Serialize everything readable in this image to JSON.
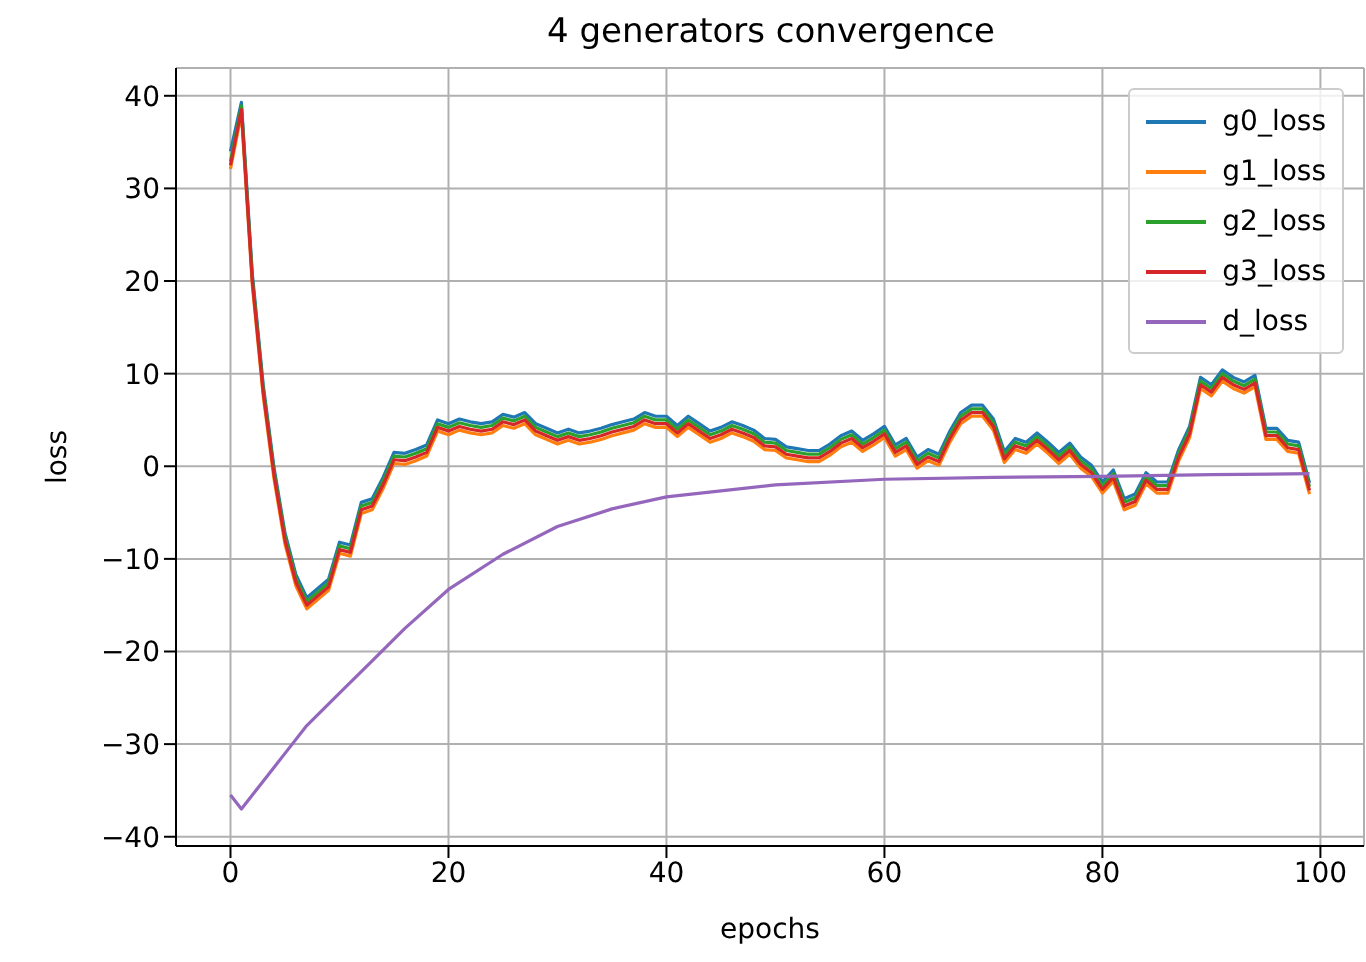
{
  "chart_data": {
    "type": "line",
    "title": "4 generators convergence",
    "xlabel": "epochs",
    "ylabel": "loss",
    "x": [
      0,
      1,
      2,
      3,
      4,
      5,
      6,
      7,
      8,
      9,
      10,
      11,
      12,
      13,
      14,
      15,
      16,
      17,
      18,
      19,
      20,
      21,
      22,
      23,
      24,
      25,
      26,
      27,
      28,
      29,
      30,
      31,
      32,
      33,
      34,
      35,
      36,
      37,
      38,
      39,
      40,
      41,
      42,
      43,
      44,
      45,
      46,
      47,
      48,
      49,
      50,
      51,
      52,
      53,
      54,
      55,
      56,
      57,
      58,
      59,
      60,
      61,
      62,
      63,
      64,
      65,
      66,
      67,
      68,
      69,
      70,
      71,
      72,
      73,
      74,
      75,
      76,
      77,
      78,
      79,
      80,
      81,
      82,
      83,
      84,
      85,
      86,
      87,
      88,
      89,
      90,
      91,
      92,
      93,
      94,
      95,
      96,
      97,
      98,
      99
    ],
    "series": [
      {
        "name": "g0_loss",
        "color": "#1f77b4",
        "values": [
          34,
          39.3,
          20.8,
          8.8,
          -0.2,
          -7.2,
          -11.7,
          -14.2,
          -13.2,
          -12.2,
          -8.2,
          -8.5,
          -3.9,
          -3.5,
          -1.2,
          1.5,
          1.4,
          1.8,
          2.3,
          5,
          4.6,
          5.1,
          4.8,
          4.6,
          4.8,
          5.6,
          5.3,
          5.8,
          4.6,
          4.1,
          3.6,
          4,
          3.6,
          3.8,
          4.1,
          4.5,
          4.8,
          5.1,
          5.8,
          5.4,
          5.4,
          4.4,
          5.4,
          4.6,
          3.8,
          4.2,
          4.8,
          4.4,
          3.9,
          3,
          2.9,
          2.1,
          1.9,
          1.7,
          1.7,
          2.4,
          3.3,
          3.8,
          2.8,
          3.5,
          4.3,
          2.3,
          3,
          1,
          1.8,
          1.3,
          3.8,
          5.8,
          6.6,
          6.6,
          5.1,
          1.6,
          3,
          2.6,
          3.6,
          2.6,
          1.5,
          2.5,
          1,
          0.1,
          -1.7,
          -0.4,
          -3.5,
          -3,
          -0.7,
          -1.7,
          -1.7,
          1.8,
          4.3,
          9.6,
          8.8,
          10.4,
          9.6,
          9.1,
          9.8,
          4.1,
          4.1,
          2.8,
          2.6,
          -1.8
        ]
      },
      {
        "name": "g1_loss",
        "color": "#ff7f0e",
        "values": [
          32.1,
          38.1,
          19.6,
          7.6,
          -1.4,
          -8.4,
          -12.9,
          -15.4,
          -14.4,
          -13.4,
          -9.4,
          -9.7,
          -5.1,
          -4.7,
          -2.4,
          0.3,
          0.2,
          0.6,
          1.1,
          3.8,
          3.4,
          3.9,
          3.6,
          3.4,
          3.6,
          4.4,
          4.1,
          4.6,
          3.4,
          2.9,
          2.4,
          2.8,
          2.4,
          2.6,
          2.9,
          3.3,
          3.6,
          3.9,
          4.6,
          4.2,
          4.2,
          3.2,
          4.2,
          3.4,
          2.6,
          3,
          3.6,
          3.2,
          2.7,
          1.8,
          1.7,
          0.9,
          0.7,
          0.5,
          0.5,
          1.2,
          2.1,
          2.6,
          1.6,
          2.3,
          3.1,
          1.1,
          1.8,
          -0.2,
          0.6,
          0.1,
          2.6,
          4.6,
          5.4,
          5.4,
          3.9,
          0.4,
          1.8,
          1.4,
          2.4,
          1.4,
          0.3,
          1.3,
          -0.2,
          -1.1,
          -2.9,
          -1.6,
          -4.7,
          -4.2,
          -1.9,
          -2.9,
          -2.9,
          0.6,
          3.1,
          8.4,
          7.6,
          9.2,
          8.4,
          7.9,
          8.6,
          2.9,
          2.9,
          1.6,
          1.4,
          -3
        ]
      },
      {
        "name": "g2_loss",
        "color": "#2ca02c",
        "values": [
          32.9,
          38.9,
          20.4,
          8.4,
          -0.6,
          -7.6,
          -12.1,
          -14.6,
          -13.6,
          -12.6,
          -8.6,
          -8.9,
          -4.3,
          -3.9,
          -1.6,
          1.1,
          1,
          1.4,
          1.9,
          4.6,
          4.2,
          4.7,
          4.4,
          4.2,
          4.4,
          5.2,
          4.9,
          5.4,
          4.2,
          3.7,
          3.2,
          3.6,
          3.2,
          3.4,
          3.7,
          4.1,
          4.4,
          4.7,
          5.4,
          5,
          5,
          4,
          5,
          4.2,
          3.4,
          3.8,
          4.4,
          4,
          3.5,
          2.6,
          2.5,
          1.7,
          1.5,
          1.3,
          1.3,
          2,
          2.9,
          3.4,
          2.4,
          3.1,
          3.9,
          1.9,
          2.6,
          0.6,
          1.4,
          0.9,
          3.4,
          5.4,
          6.2,
          6.2,
          4.7,
          1.2,
          2.6,
          2.2,
          3.2,
          2.2,
          1.1,
          2.1,
          0.6,
          -0.3,
          -2.1,
          -0.8,
          -3.9,
          -3.4,
          -1.1,
          -2.1,
          -2.1,
          1.4,
          3.9,
          9.2,
          8.4,
          10,
          9.2,
          8.7,
          9.4,
          3.7,
          3.7,
          2.4,
          2.2,
          -2.2
        ]
      },
      {
        "name": "g3_loss",
        "color": "#d62728",
        "values": [
          32.5,
          38.5,
          20,
          8,
          -1,
          -8,
          -12.5,
          -15,
          -14,
          -13,
          -9,
          -9.3,
          -4.7,
          -4.3,
          -2,
          0.7,
          0.6,
          1,
          1.5,
          4.2,
          3.8,
          4.3,
          4,
          3.8,
          4,
          4.8,
          4.5,
          5,
          3.8,
          3.3,
          2.8,
          3.2,
          2.8,
          3,
          3.3,
          3.7,
          4,
          4.3,
          5,
          4.6,
          4.6,
          3.6,
          4.6,
          3.8,
          3,
          3.4,
          4,
          3.6,
          3.1,
          2.2,
          2.1,
          1.3,
          1.1,
          0.9,
          0.9,
          1.6,
          2.5,
          3,
          2,
          2.7,
          3.5,
          1.5,
          2.2,
          0.2,
          1,
          0.5,
          3,
          5,
          5.8,
          5.8,
          4.3,
          0.8,
          2.2,
          1.8,
          2.8,
          1.8,
          0.7,
          1.7,
          0.2,
          -0.7,
          -2.5,
          -1.2,
          -4.3,
          -3.8,
          -1.5,
          -2.5,
          -2.5,
          1,
          3.5,
          8.8,
          8,
          9.6,
          8.8,
          8.3,
          9,
          3.3,
          3.3,
          2,
          1.8,
          -2.6
        ]
      },
      {
        "name": "d_loss",
        "color": "#9467bd",
        "x": [
          0,
          1,
          3,
          5,
          7,
          10,
          13,
          16,
          20,
          25,
          30,
          35,
          40,
          50,
          60,
          70,
          80,
          90,
          99
        ],
        "values": [
          -35.5,
          -37,
          -34,
          -31,
          -28,
          -24.5,
          -21,
          -17.5,
          -13.3,
          -9.5,
          -6.5,
          -4.6,
          -3.3,
          -2,
          -1.4,
          -1.2,
          -1.1,
          -0.9,
          -0.8
        ]
      }
    ],
    "xlim": [
      -5,
      104
    ],
    "xticks": [
      0,
      20,
      40,
      60,
      80,
      100
    ],
    "ylim": [
      -41,
      43
    ],
    "yticks": [
      -40,
      -30,
      -20,
      -10,
      0,
      10,
      20,
      30,
      40
    ],
    "grid": true,
    "legend": "top right",
    "marker": "none",
    "line_style": "solid"
  }
}
